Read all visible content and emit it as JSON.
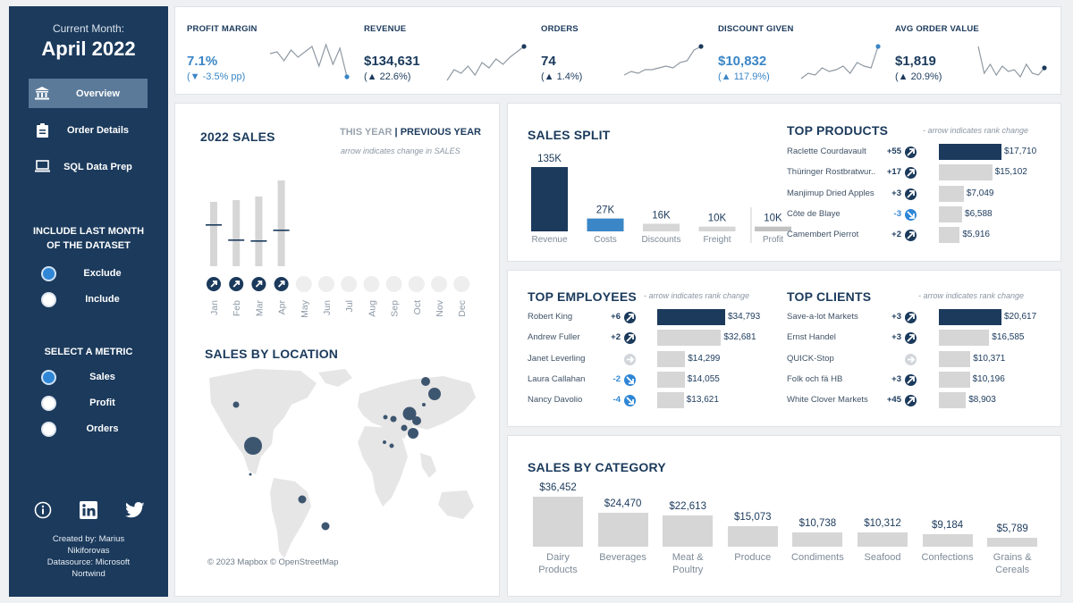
{
  "sidebar": {
    "month_label": "Current Month:",
    "month": "April 2022",
    "nav": [
      {
        "label": "Overview",
        "icon": "bank-icon",
        "active": true
      },
      {
        "label": "Order Details",
        "icon": "clipboard-icon",
        "active": false
      },
      {
        "label": "SQL Data Prep",
        "icon": "laptop-icon",
        "active": false
      }
    ],
    "include_heading": "INCLUDE LAST MONTH OF THE DATASET",
    "include_options": [
      {
        "label": "Exclude",
        "selected": true
      },
      {
        "label": "Include",
        "selected": false
      }
    ],
    "metric_heading": "SELECT A METRIC",
    "metric_options": [
      {
        "label": "Sales",
        "selected": true
      },
      {
        "label": "Profit",
        "selected": false
      },
      {
        "label": "Orders",
        "selected": false
      }
    ],
    "social_icons": [
      "info-icon",
      "linkedin-icon",
      "twitter-icon"
    ],
    "credit_line1": "Created by: Marius",
    "credit_line2": "Nikiforovas",
    "credit_line3": "Datasource: Microsoft",
    "credit_line4": "Nortwind"
  },
  "kpis": [
    {
      "title": "PROFIT MARGIN",
      "value": "7.1%",
      "change": "(▼ -3.5% pp)",
      "color": "#3a86c6",
      "spark": [
        38,
        40,
        30,
        42,
        34,
        40,
        46,
        24,
        48,
        26,
        44,
        12
      ]
    },
    {
      "title": "REVENUE",
      "value": "$134,631",
      "change": "(▲ 22.6%)",
      "color": "#1b3a5c",
      "spark": [
        8,
        20,
        16,
        24,
        14,
        28,
        22,
        32,
        26,
        34,
        40,
        46
      ]
    },
    {
      "title": "ORDERS",
      "value": "74",
      "change": "(▲ 1.4%)",
      "color": "#1b3a5c",
      "spark": [
        14,
        18,
        16,
        20,
        20,
        22,
        24,
        22,
        28,
        30,
        42,
        46
      ]
    },
    {
      "title": "DISCOUNT GIVEN",
      "value": "$10,832",
      "change": "(▲ 117.9%)",
      "color": "#3a86c6",
      "spark": [
        10,
        16,
        14,
        22,
        18,
        20,
        24,
        16,
        28,
        24,
        22,
        46
      ]
    },
    {
      "title": "AVG ORDER VALUE",
      "value": "$1,819",
      "change": "(▲ 20.9%)",
      "color": "#1b3a5c",
      "spark": [
        46,
        16,
        26,
        14,
        24,
        18,
        20,
        12,
        26,
        16,
        14,
        22
      ]
    }
  ],
  "sales2022": {
    "title": "2022 SALES",
    "legend_this": "THIS YEAR",
    "legend_sep": "|",
    "legend_prev": "PREVIOUS YEAR",
    "note": "arrow indicates change in SALES",
    "months": [
      "Jan",
      "Feb",
      "Mar",
      "Apr",
      "May",
      "Jun",
      "Jul",
      "Aug",
      "Sep",
      "Oct",
      "Nov",
      "Dec"
    ],
    "this_year": [
      72,
      74,
      78,
      96,
      null,
      null,
      null,
      null,
      null,
      null,
      null,
      null
    ],
    "prev_year": [
      46,
      29,
      28,
      40,
      null,
      null,
      null,
      null,
      null,
      null,
      null,
      null
    ]
  },
  "location": {
    "title": "SALES BY LOCATION",
    "credit": "© 2023 Mapbox © OpenStreetMap"
  },
  "split": {
    "title": "SALES SPLIT",
    "items": [
      {
        "label": "Revenue",
        "value": "135K",
        "amount": 135,
        "color": "#1b3a5c"
      },
      {
        "label": "Costs",
        "value": "27K",
        "amount": 27,
        "color": "#3a86c6"
      },
      {
        "label": "Discounts",
        "value": "16K",
        "amount": 16,
        "color": "#d6d6d6"
      },
      {
        "label": "Freight",
        "value": "10K",
        "amount": 10,
        "color": "#d6d6d6"
      },
      {
        "label": "Profit",
        "value": "10K",
        "amount": 10,
        "color": "#c2c2c2"
      }
    ]
  },
  "products": {
    "title": "TOP PRODUCTS",
    "note": "- arrow indicates rank change",
    "rows": [
      {
        "name": "Raclette Courdavault",
        "rank": "+55",
        "dir": "up",
        "value": "$17,710",
        "amount": 17710
      },
      {
        "name": "Thüringer Rostbratwur..",
        "rank": "+17",
        "dir": "up",
        "value": "$15,102",
        "amount": 15102
      },
      {
        "name": "Manjimup Dried Apples",
        "rank": "+3",
        "dir": "up",
        "value": "$7,049",
        "amount": 7049
      },
      {
        "name": "Côte de Blaye",
        "rank": "-3",
        "dir": "down",
        "value": "$6,588",
        "amount": 6588
      },
      {
        "name": "Camembert Pierrot",
        "rank": "+2",
        "dir": "up",
        "value": "$5,916",
        "amount": 5916
      }
    ]
  },
  "employees": {
    "title": "TOP EMPLOYEES",
    "note": "- arrow indicates rank change",
    "rows": [
      {
        "name": "Robert King",
        "rank": "+6",
        "dir": "up",
        "value": "$34,793",
        "amount": 34793
      },
      {
        "name": "Andrew Fuller",
        "rank": "+2",
        "dir": "up",
        "value": "$32,681",
        "amount": 32681
      },
      {
        "name": "Janet Leverling",
        "rank": "",
        "dir": "same",
        "value": "$14,299",
        "amount": 14299
      },
      {
        "name": "Laura Callahan",
        "rank": "-2",
        "dir": "down",
        "value": "$14,055",
        "amount": 14055
      },
      {
        "name": "Nancy Davolio",
        "rank": "-4",
        "dir": "down",
        "value": "$13,621",
        "amount": 13621
      }
    ]
  },
  "clients": {
    "title": "TOP CLIENTS",
    "note": "- arrow indicates rank change",
    "rows": [
      {
        "name": "Save-a-lot Markets",
        "rank": "+3",
        "dir": "up",
        "value": "$20,617",
        "amount": 20617
      },
      {
        "name": "Ernst Handel",
        "rank": "+3",
        "dir": "up",
        "value": "$16,585",
        "amount": 16585
      },
      {
        "name": "QUICK-Stop",
        "rank": "",
        "dir": "same",
        "value": "$10,371",
        "amount": 10371
      },
      {
        "name": "Folk och fä HB",
        "rank": "+3",
        "dir": "up",
        "value": "$10,196",
        "amount": 10196
      },
      {
        "name": "White Clover Markets",
        "rank": "+45",
        "dir": "up",
        "value": "$8,903",
        "amount": 8903
      }
    ]
  },
  "category": {
    "title": "SALES BY CATEGORY",
    "items": [
      {
        "label1": "Dairy",
        "label2": "Products",
        "value": "$36,452",
        "amount": 36452
      },
      {
        "label1": "Beverages",
        "label2": "",
        "value": "$24,470",
        "amount": 24470
      },
      {
        "label1": "Meat &",
        "label2": "Poultry",
        "value": "$22,613",
        "amount": 22613
      },
      {
        "label1": "Produce",
        "label2": "",
        "value": "$15,073",
        "amount": 15073
      },
      {
        "label1": "Condiments",
        "label2": "",
        "value": "$10,738",
        "amount": 10738
      },
      {
        "label1": "Seafood",
        "label2": "",
        "value": "$10,312",
        "amount": 10312
      },
      {
        "label1": "Confections",
        "label2": "",
        "value": "$9,184",
        "amount": 9184
      },
      {
        "label1": "Grains &",
        "label2": "Cereals",
        "value": "$5,789",
        "amount": 5789
      }
    ]
  }
}
